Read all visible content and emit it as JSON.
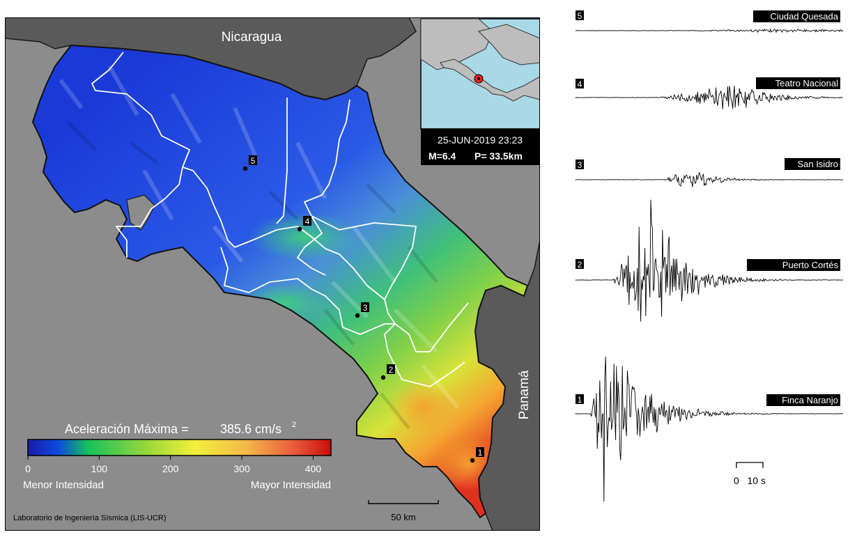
{
  "map": {
    "countries": {
      "north": "Nicaragua",
      "east": "Panamá"
    },
    "stations": [
      {
        "num": "1",
        "name": "Finca Naranjo"
      },
      {
        "num": "2",
        "name": "Puerto Cortés"
      },
      {
        "num": "3",
        "name": "San Isidro"
      },
      {
        "num": "4",
        "name": "Teatro Nacional"
      },
      {
        "num": "5",
        "name": "Ciudad Quesada"
      }
    ],
    "credit": "Laboratorio de Ingeniería Sísmica (LIS-UCR)",
    "scale_bar_label": "50 km",
    "colors": {
      "ocean": "#8c8c8c",
      "land_neighbor": "#5a5a5a",
      "inset_sea": "#a9d8e7",
      "inset_land": "#bdbdbd",
      "epicenter": "#e8231b"
    }
  },
  "event": {
    "datetime": "25-JUN-2019 23:23",
    "magnitude": "M=6.4",
    "depth": "P= 33.5km"
  },
  "legend": {
    "title": "Aceleración Máxima =",
    "value": "385.6 cm/s",
    "unit_exp": "2",
    "ticks": [
      "0",
      "100",
      "200",
      "300",
      "400"
    ],
    "tick_values": [
      0,
      100,
      200,
      300,
      400
    ],
    "range": [
      0,
      425
    ],
    "low_label": "Menor Intensidad",
    "high_label": "Mayor Intensidad",
    "colormap": [
      "#1a1aa8",
      "#0b4be0",
      "#18c25a",
      "#6fd24a",
      "#e8e83a",
      "#f0a020",
      "#e03020",
      "#d01010"
    ]
  },
  "seismograms": {
    "time_scale_label": "0   10 s",
    "order": [
      "5",
      "4",
      "3",
      "2",
      "1"
    ]
  }
}
